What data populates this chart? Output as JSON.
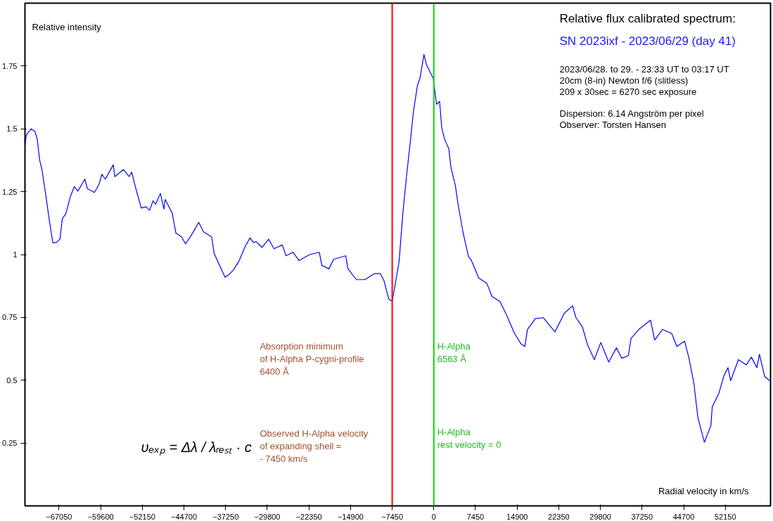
{
  "chart_data": {
    "type": "line",
    "title": "Relative flux calibrated spectrum:",
    "subtitle": "SN 2023ixf - 2023/06/29 (day 41)",
    "xlabel": "Radial velocity in km/s",
    "ylabel": "Relative intensity",
    "xlim": [
      -73150,
      60240
    ],
    "ylim": [
      0,
      2.0
    ],
    "xticks": [
      -67050,
      -59600,
      -52150,
      -44700,
      -37250,
      -29800,
      -22350,
      -14900,
      -7450,
      0,
      7450,
      14900,
      22350,
      29800,
      37250,
      44700,
      52150
    ],
    "yticks": [
      0.25,
      0.5,
      0.75,
      1,
      1.25,
      1.5,
      1.75
    ],
    "grid": false,
    "series": [
      {
        "color": "#0000ff",
        "x": [
          -73150,
          -72910,
          -72060,
          -71390,
          -70960,
          -70525,
          -70110,
          -69255,
          -68820,
          -68170,
          -67550,
          -66890,
          -66465,
          -65840,
          -64990,
          -64330,
          -63685,
          -62430,
          -61980,
          -60720,
          -59870,
          -59405,
          -58770,
          -57355,
          -57065,
          -55550,
          -54500,
          -54065,
          -53405,
          -52345,
          -51490,
          -50845,
          -50235,
          -49785,
          -48920,
          -48285,
          -48065,
          -46820,
          -46140,
          -45115,
          -44430,
          -43165,
          -42065,
          -41210,
          -39750,
          -39300,
          -37370,
          -36725,
          -35870,
          -34810,
          -33740,
          -32885,
          -32240,
          -31825,
          -30740,
          -29545,
          -28605,
          -27105,
          -26460,
          -25180,
          -24105,
          -22190,
          -20485,
          -20045,
          -18775,
          -17925,
          -15765,
          -15365,
          -13840,
          -12340,
          -10630,
          -9560,
          -8900,
          -8070,
          -7440,
          -6220,
          -5525,
          -4815,
          -4145,
          -3660,
          -2950,
          -2475,
          -1770,
          -1305,
          -610,
          -120,
          490,
          1035,
          1415,
          1950,
          2680,
          3050,
          3855,
          4330,
          5245,
          6195,
          6670,
          8045,
          9485,
          10425,
          11825,
          13000,
          14390,
          15580,
          16280,
          16755,
          18165,
          19570,
          21680,
          23290,
          24815,
          25420,
          26580,
          27530,
          28715,
          29870,
          31290,
          32675,
          33630,
          34810,
          35275,
          36675,
          38775,
          39505,
          40910,
          42555,
          43480,
          44870,
          45600,
          46530,
          47235,
          48405,
          49575,
          49810,
          50965,
          51920,
          52625,
          53100,
          54500,
          55905,
          56820,
          57795,
          58260,
          59200,
          60110
        ],
        "values": [
          1.43,
          1.476,
          1.5,
          1.49,
          1.46,
          1.376,
          1.338,
          1.21,
          1.14,
          1.047,
          1.047,
          1.062,
          1.143,
          1.162,
          1.233,
          1.27,
          1.252,
          1.3,
          1.262,
          1.247,
          1.281,
          1.319,
          1.3,
          1.357,
          1.31,
          1.338,
          1.31,
          1.328,
          1.27,
          1.185,
          1.19,
          1.176,
          1.214,
          1.2,
          1.243,
          1.181,
          1.219,
          1.166,
          1.085,
          1.07,
          1.042,
          1.085,
          1.128,
          1.09,
          1.07,
          1.004,
          0.91,
          0.919,
          0.938,
          0.976,
          1.033,
          1.066,
          1.047,
          1.052,
          1.028,
          1.061,
          1.023,
          1.038,
          0.995,
          1.009,
          0.976,
          1.0,
          1.009,
          0.957,
          0.943,
          0.981,
          0.995,
          0.943,
          0.9,
          0.9,
          0.924,
          0.924,
          0.895,
          0.823,
          0.814,
          0.971,
          1.169,
          1.326,
          1.462,
          1.567,
          1.671,
          1.702,
          1.796,
          1.755,
          1.723,
          1.702,
          1.598,
          1.609,
          1.504,
          1.457,
          1.421,
          1.348,
          1.274,
          1.2,
          1.086,
          0.992,
          0.979,
          0.906,
          0.885,
          0.833,
          0.813,
          0.76,
          0.688,
          0.645,
          0.634,
          0.702,
          0.745,
          0.749,
          0.692,
          0.765,
          0.796,
          0.749,
          0.712,
          0.639,
          0.582,
          0.65,
          0.572,
          0.629,
          0.587,
          0.598,
          0.666,
          0.702,
          0.739,
          0.66,
          0.702,
          0.686,
          0.634,
          0.655,
          0.592,
          0.488,
          0.352,
          0.253,
          0.32,
          0.394,
          0.446,
          0.519,
          0.55,
          0.498,
          0.582,
          0.561,
          0.592,
          0.55,
          0.603,
          0.514,
          0.498
        ]
      }
    ],
    "ref_lines": [
      {
        "axis": "x",
        "value": -7450,
        "color": "#ff0000"
      },
      {
        "axis": "x",
        "value": 0,
        "color": "#00dd00"
      }
    ],
    "annotations": [
      "2023/06/28. to 29. -  23:33 UT to 03:17 UT",
      "20cm (8-in) Newton f/6 (slitless)",
      "209 x 30sec = 6270 sec exposure",
      "Dispersion: 6.14 Angström per pixel",
      "Observer: Torsten Hansen",
      "Absorption minimum\nof H-Alpha P-cygni-profile\n6400 Å",
      "Observed H-Alpha velocity\nof expanding shell =\n- 7450 km/s",
      "H-Alpha\n6563 Å",
      "H-Alpha\nrest velocity = 0",
      "υₑₓₚ = Δλ / λᵣₑₛₜ · c"
    ]
  }
}
